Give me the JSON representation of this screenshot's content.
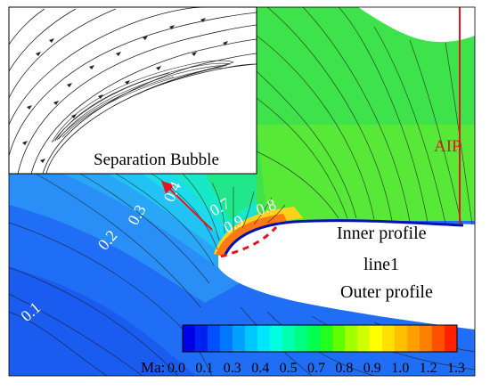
{
  "labels": {
    "separation_bubble": "Separation Bubble",
    "aip": "AIP",
    "inner_profile": "Inner profile",
    "line1": "line1",
    "outer_profile": "Outer profile"
  },
  "contour_labels": [
    "0.1",
    "0.2",
    "0.3",
    "0.4",
    "0.7",
    "0.9",
    "0.8"
  ],
  "colorbar": {
    "title": "Ma:",
    "ticks": [
      "0.0",
      "0.1",
      "0.3",
      "0.4",
      "0.5",
      "0.7",
      "0.8",
      "0.9",
      "1.0",
      "1.2",
      "1.3"
    ],
    "colors": [
      "#0000e6",
      "#0022f0",
      "#0050ff",
      "#0078ff",
      "#00a0ff",
      "#00c8ff",
      "#00e6ff",
      "#00ffe0",
      "#00ffb0",
      "#00ff80",
      "#00ff50",
      "#20ff20",
      "#60ff00",
      "#a0ff00",
      "#d0ff00",
      "#ffff00",
      "#ffe000",
      "#ffc000",
      "#ffa000",
      "#ff8000",
      "#ff5000",
      "#ff2000"
    ]
  },
  "colors": {
    "aip_line": "#e8141c",
    "arrow": "#e8141c",
    "dashed_line": "#e8141c"
  }
}
